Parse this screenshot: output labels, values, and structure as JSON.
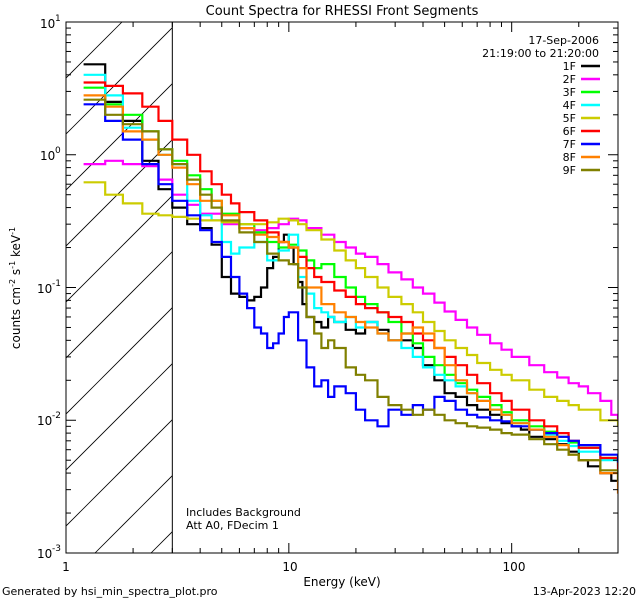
{
  "chart_data": {
    "type": "line",
    "title": "Count Spectra for RHESSI Front Segments",
    "xlabel": "Energy (keV)",
    "ylabel_main": "counts cm",
    "ylabel_exp1": "-2",
    "ylabel_mid": " s",
    "ylabel_exp2": "-1",
    "ylabel_tail": " keV",
    "ylabel_exp3": "-1",
    "xscale": "log",
    "yscale": "log",
    "xlim": [
      1,
      300
    ],
    "ylim": [
      0.001,
      10
    ],
    "x_ticks": [
      {
        "value": 1,
        "label": "1"
      },
      {
        "value": 10,
        "label": "10"
      },
      {
        "value": 100,
        "label": "100"
      }
    ],
    "y_ticks": [
      {
        "value": 10,
        "base": "10",
        "exp": "1"
      },
      {
        "value": 1,
        "base": "10",
        "exp": "0"
      },
      {
        "value": 0.1,
        "base": "10",
        "exp": "-1"
      },
      {
        "value": 0.01,
        "base": "10",
        "exp": "-2"
      },
      {
        "value": 0.001,
        "base": "10",
        "exp": "-3"
      }
    ],
    "date": "17-Sep-2006",
    "time_range": "21:19:00 to 21:20:00",
    "hatch_upper_keV": 3,
    "notes": [
      "Includes Background",
      "Att A0, FDecim 1"
    ],
    "series": [
      {
        "name": "1F",
        "color": "#000000",
        "x": [
          1.2,
          1.5,
          1.8,
          2.2,
          2.6,
          3.0,
          3.5,
          4.0,
          4.5,
          5.0,
          5.5,
          6.0,
          6.5,
          7.0,
          7.5,
          8.0,
          8.5,
          9.0,
          9.5,
          10.0,
          10.5,
          11.0,
          11.5,
          12.0,
          13.0,
          14.0,
          15.0,
          16.0,
          18.0,
          20.0,
          22.0,
          25.0,
          28.0,
          32.0,
          36.0,
          40.0,
          45.0,
          50.0,
          56.0,
          63.0,
          70.0,
          80.0,
          90.0,
          100.0,
          110.0,
          120.0,
          140.0,
          160.0,
          180.0,
          200.0,
          220.0,
          250.0,
          280.0
        ],
        "y": [
          4.8,
          2.5,
          1.8,
          0.9,
          0.55,
          0.4,
          0.3,
          0.28,
          0.21,
          0.12,
          0.09,
          0.085,
          0.08,
          0.085,
          0.1,
          0.14,
          0.17,
          0.22,
          0.25,
          0.2,
          0.15,
          0.11,
          0.075,
          0.06,
          0.055,
          0.05,
          0.06,
          0.055,
          0.048,
          0.045,
          0.055,
          0.048,
          0.04,
          0.04,
          0.035,
          0.026,
          0.02,
          0.016,
          0.015,
          0.013,
          0.012,
          0.011,
          0.0095,
          0.009,
          0.0085,
          0.0075,
          0.0072,
          0.0066,
          0.0058,
          0.005,
          0.0045,
          0.004,
          0.0035
        ]
      },
      {
        "name": "2F",
        "color": "#ff00ff",
        "x": [
          1.2,
          1.5,
          1.8,
          2.2,
          2.6,
          3.0,
          3.5,
          4.0,
          5.0,
          6.0,
          7.0,
          8.0,
          9.0,
          10.0,
          11.0,
          12.0,
          14.0,
          16.0,
          18.0,
          20.0,
          22.0,
          25.0,
          28.0,
          32.0,
          36.0,
          40.0,
          45.0,
          50.0,
          56.0,
          63.0,
          70.0,
          80.0,
          90.0,
          100.0,
          120.0,
          140.0,
          160.0,
          180.0,
          200.0,
          220.0,
          250.0,
          280.0,
          300.0
        ],
        "y": [
          0.85,
          0.9,
          0.85,
          0.82,
          0.65,
          0.5,
          0.42,
          0.36,
          0.3,
          0.28,
          0.27,
          0.28,
          0.3,
          0.33,
          0.32,
          0.28,
          0.25,
          0.22,
          0.2,
          0.18,
          0.17,
          0.15,
          0.13,
          0.115,
          0.1,
          0.09,
          0.077,
          0.066,
          0.057,
          0.05,
          0.044,
          0.038,
          0.034,
          0.03,
          0.026,
          0.023,
          0.021,
          0.019,
          0.018,
          0.016,
          0.014,
          0.011,
          0.01
        ]
      },
      {
        "name": "3F",
        "color": "#00ff00",
        "x": [
          1.2,
          1.5,
          1.8,
          2.2,
          2.6,
          3.0,
          3.5,
          4.0,
          4.5,
          5.0,
          6.0,
          7.0,
          8.0,
          9.0,
          10.0,
          11.0,
          12.0,
          13.0,
          14.0,
          16.0,
          18.0,
          20.0,
          22.0,
          25.0,
          28.0,
          32.0,
          36.0,
          40.0,
          45.0,
          50.0,
          56.0,
          63.0,
          70.0,
          80.0,
          90.0,
          100.0,
          120.0,
          140.0,
          160.0,
          180.0,
          200.0,
          250.0,
          300.0
        ],
        "y": [
          3.2,
          2.4,
          2.0,
          1.5,
          1.1,
          0.9,
          0.7,
          0.55,
          0.45,
          0.36,
          0.3,
          0.26,
          0.22,
          0.2,
          0.21,
          0.19,
          0.16,
          0.14,
          0.15,
          0.12,
          0.1,
          0.085,
          0.075,
          0.065,
          0.055,
          0.045,
          0.038,
          0.03,
          0.026,
          0.022,
          0.019,
          0.017,
          0.015,
          0.013,
          0.0115,
          0.01,
          0.009,
          0.0082,
          0.0075,
          0.0068,
          0.0062,
          0.0052,
          0.0045
        ]
      },
      {
        "name": "4F",
        "color": "#00ffff",
        "x": [
          1.2,
          1.5,
          1.8,
          2.2,
          2.6,
          3.0,
          3.5,
          4.0,
          4.5,
          5.0,
          5.5,
          6.0,
          7.0,
          8.0,
          9.0,
          10.0,
          11.0,
          12.0,
          13.0,
          14.0,
          15.0,
          16.0,
          18.0,
          20.0,
          22.0,
          25.0,
          28.0,
          32.0,
          36.0,
          40.0,
          45.0,
          50.0,
          56.0,
          63.0,
          70.0,
          80.0,
          90.0,
          100.0,
          120.0,
          140.0,
          160.0,
          180.0,
          200.0,
          250.0,
          300.0
        ],
        "y": [
          4.0,
          2.8,
          1.6,
          1.3,
          1.0,
          0.85,
          0.45,
          0.35,
          0.32,
          0.22,
          0.18,
          0.2,
          0.22,
          0.16,
          0.19,
          0.25,
          0.12,
          0.09,
          0.07,
          0.065,
          0.06,
          0.055,
          0.06,
          0.05,
          0.055,
          0.045,
          0.04,
          0.035,
          0.03,
          0.025,
          0.022,
          0.02,
          0.018,
          0.016,
          0.014,
          0.012,
          0.011,
          0.0095,
          0.0085,
          0.0078,
          0.007,
          0.0064,
          0.0058,
          0.005,
          0.0042
        ]
      },
      {
        "name": "5F",
        "color": "#cccc00",
        "x": [
          1.2,
          1.5,
          1.8,
          2.2,
          2.6,
          3.0,
          3.5,
          4.0,
          5.0,
          6.0,
          7.0,
          8.0,
          9.0,
          10.0,
          11.0,
          12.0,
          14.0,
          16.0,
          18.0,
          20.0,
          22.0,
          25.0,
          28.0,
          32.0,
          36.0,
          40.0,
          45.0,
          50.0,
          56.0,
          63.0,
          70.0,
          80.0,
          90.0,
          100.0,
          120.0,
          140.0,
          160.0,
          180.0,
          200.0,
          250.0,
          300.0
        ],
        "y": [
          0.62,
          0.5,
          0.43,
          0.36,
          0.35,
          0.34,
          0.33,
          0.32,
          0.31,
          0.3,
          0.3,
          0.31,
          0.33,
          0.32,
          0.3,
          0.27,
          0.23,
          0.19,
          0.16,
          0.14,
          0.12,
          0.1,
          0.085,
          0.075,
          0.065,
          0.055,
          0.047,
          0.04,
          0.035,
          0.031,
          0.027,
          0.024,
          0.022,
          0.02,
          0.017,
          0.015,
          0.014,
          0.013,
          0.012,
          0.01,
          0.009
        ]
      },
      {
        "name": "6F",
        "color": "#ff0000",
        "x": [
          1.2,
          1.5,
          1.8,
          2.2,
          2.6,
          3.0,
          3.5,
          4.0,
          4.5,
          5.0,
          5.5,
          6.0,
          7.0,
          8.0,
          9.0,
          10.0,
          11.0,
          12.0,
          13.0,
          14.0,
          16.0,
          18.0,
          20.0,
          22.0,
          25.0,
          28.0,
          32.0,
          36.0,
          40.0,
          45.0,
          50.0,
          56.0,
          63.0,
          70.0,
          80.0,
          90.0,
          100.0,
          120.0,
          140.0,
          160.0,
          180.0,
          200.0,
          250.0,
          300.0
        ],
        "y": [
          3.5,
          3.3,
          2.9,
          2.3,
          1.8,
          1.3,
          1.0,
          0.75,
          0.6,
          0.5,
          0.43,
          0.37,
          0.32,
          0.26,
          0.22,
          0.2,
          0.17,
          0.14,
          0.12,
          0.11,
          0.095,
          0.085,
          0.075,
          0.07,
          0.065,
          0.06,
          0.055,
          0.045,
          0.04,
          0.035,
          0.03,
          0.026,
          0.022,
          0.019,
          0.016,
          0.014,
          0.012,
          0.01,
          0.009,
          0.008,
          0.007,
          0.0062,
          0.0052,
          0.0042
        ]
      },
      {
        "name": "7F",
        "color": "#0000ff",
        "x": [
          1.2,
          1.5,
          1.8,
          2.2,
          2.6,
          3.0,
          3.5,
          4.0,
          4.5,
          5.0,
          5.5,
          6.0,
          6.5,
          7.0,
          7.5,
          8.0,
          8.5,
          9.0,
          9.5,
          10.0,
          11.0,
          12.0,
          13.0,
          14.0,
          15.0,
          16.0,
          18.0,
          20.0,
          22.0,
          25.0,
          28.0,
          32.0,
          36.0,
          40.0,
          45.0,
          50.0,
          56.0,
          63.0,
          70.0,
          80.0,
          90.0,
          100.0,
          120.0,
          140.0,
          160.0,
          180.0,
          200.0,
          250.0,
          300.0
        ],
        "y": [
          2.4,
          1.8,
          1.3,
          0.85,
          0.6,
          0.45,
          0.35,
          0.27,
          0.22,
          0.17,
          0.12,
          0.09,
          0.07,
          0.05,
          0.045,
          0.035,
          0.038,
          0.045,
          0.06,
          0.065,
          0.04,
          0.025,
          0.018,
          0.02,
          0.015,
          0.018,
          0.016,
          0.012,
          0.01,
          0.009,
          0.012,
          0.011,
          0.013,
          0.012,
          0.015,
          0.014,
          0.012,
          0.011,
          0.0105,
          0.01,
          0.0098,
          0.009,
          0.0085,
          0.008,
          0.0075,
          0.007,
          0.0065,
          0.0055,
          0.0048
        ]
      },
      {
        "name": "8F",
        "color": "#ff8000",
        "x": [
          1.2,
          1.5,
          1.8,
          2.2,
          2.6,
          3.0,
          3.5,
          4.0,
          5.0,
          6.0,
          7.0,
          8.0,
          9.0,
          10.0,
          11.0,
          12.0,
          14.0,
          16.0,
          18.0,
          20.0,
          22.0,
          25.0,
          28.0,
          32.0,
          36.0,
          40.0,
          45.0,
          50.0,
          56.0,
          63.0,
          70.0,
          80.0,
          90.0,
          100.0,
          120.0,
          140.0,
          160.0,
          180.0,
          200.0,
          250.0,
          300.0
        ],
        "y": [
          2.8,
          2.3,
          1.5,
          1.3,
          1.0,
          0.8,
          0.6,
          0.45,
          0.35,
          0.28,
          0.25,
          0.24,
          0.22,
          0.2,
          0.14,
          0.1,
          0.075,
          0.065,
          0.06,
          0.055,
          0.05,
          0.045,
          0.04,
          0.045,
          0.05,
          0.045,
          0.035,
          0.026,
          0.02,
          0.016,
          0.014,
          0.012,
          0.011,
          0.0095,
          0.0085,
          0.0075,
          0.0065,
          0.0055,
          0.005,
          0.004,
          0.0028
        ]
      },
      {
        "name": "9F",
        "color": "#808000",
        "x": [
          1.2,
          1.5,
          1.8,
          2.2,
          2.6,
          3.0,
          3.5,
          4.0,
          4.5,
          5.0,
          6.0,
          7.0,
          8.0,
          9.0,
          10.0,
          11.0,
          12.0,
          13.0,
          14.0,
          15.0,
          16.0,
          18.0,
          20.0,
          22.0,
          25.0,
          28.0,
          32.0,
          36.0,
          40.0,
          45.0,
          50.0,
          56.0,
          63.0,
          70.0,
          80.0,
          90.0,
          100.0,
          120.0,
          140.0,
          160.0,
          180.0,
          200.0,
          250.0,
          300.0
        ],
        "y": [
          2.6,
          2.0,
          1.7,
          1.5,
          1.1,
          0.85,
          0.65,
          0.5,
          0.4,
          0.32,
          0.26,
          0.22,
          0.18,
          0.16,
          0.15,
          0.1,
          0.06,
          0.045,
          0.035,
          0.04,
          0.035,
          0.025,
          0.022,
          0.02,
          0.015,
          0.013,
          0.012,
          0.011,
          0.012,
          0.011,
          0.01,
          0.0095,
          0.009,
          0.0088,
          0.0085,
          0.008,
          0.0078,
          0.0072,
          0.0066,
          0.006,
          0.0055,
          0.005,
          0.0042,
          0.0035
        ]
      }
    ]
  },
  "footer": {
    "generated_by": "Generated by hsi_min_spectra_plot.pro",
    "timestamp": "13-Apr-2023 12:20"
  }
}
